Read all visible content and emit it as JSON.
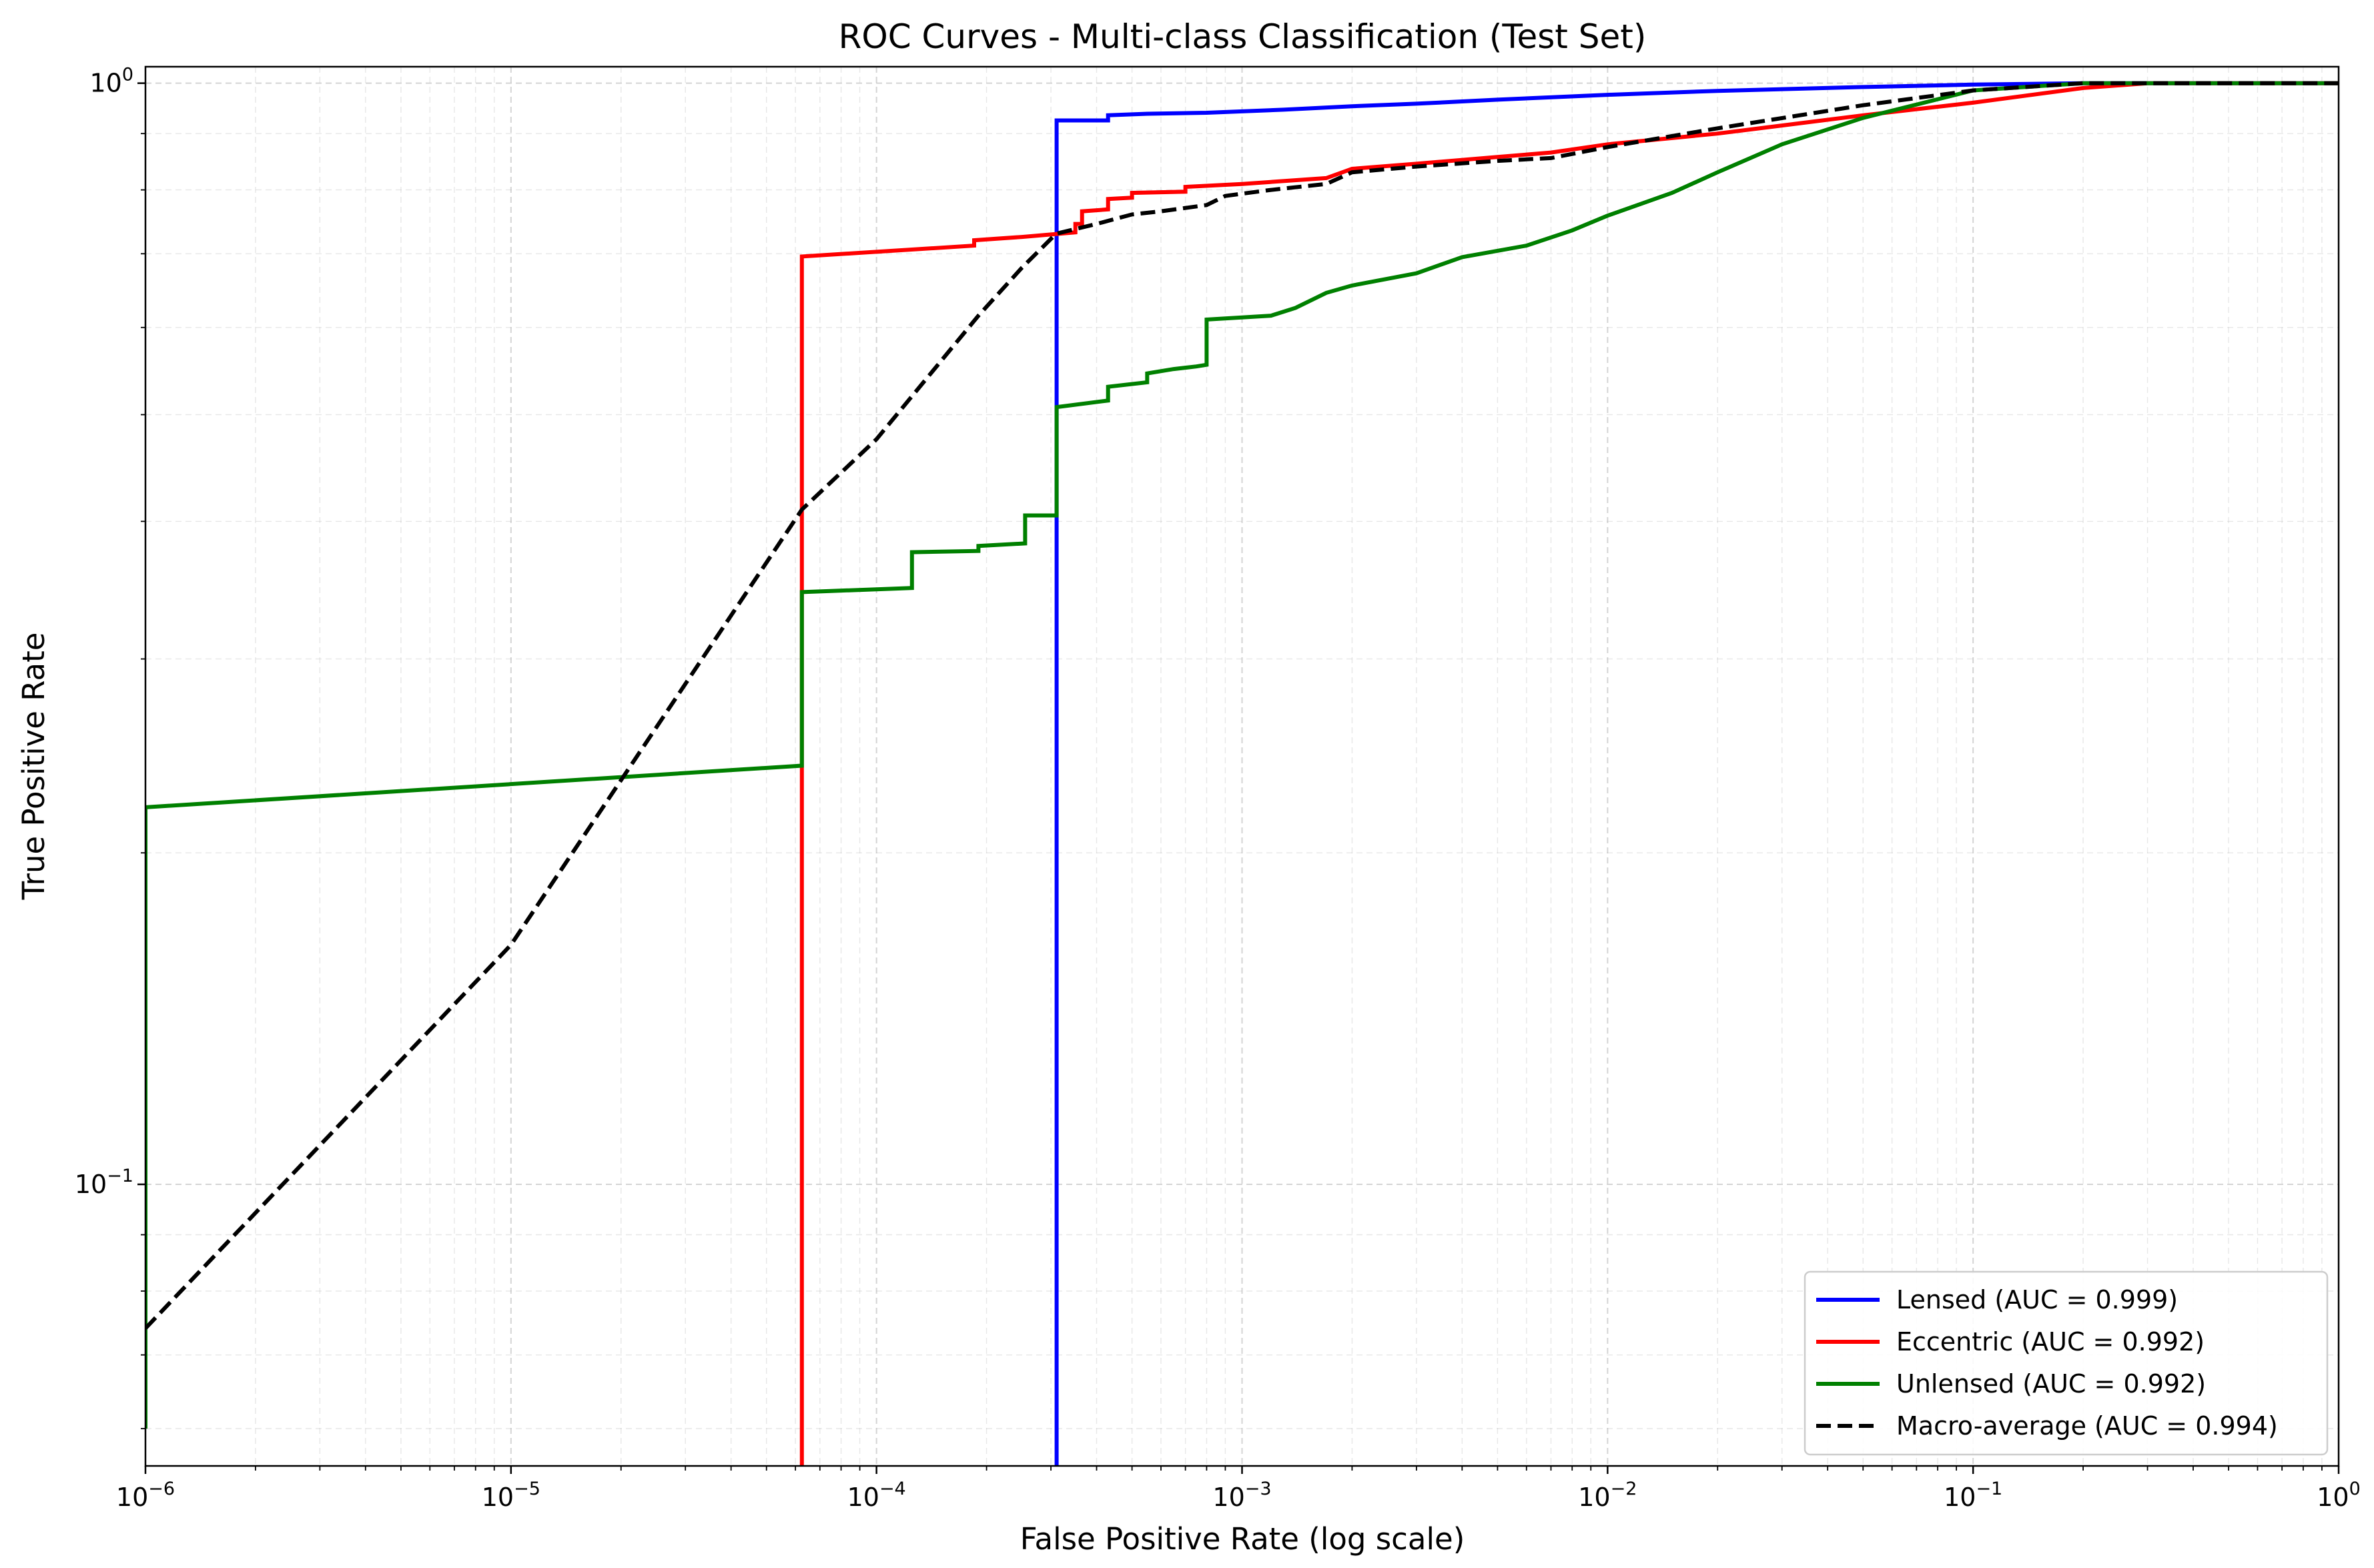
{
  "chart_data": {
    "type": "line",
    "title": "ROC Curves - Multi-class Classification (Test Set)",
    "xlabel": "False Positive Rate (log scale)",
    "ylabel": "True Positive Rate",
    "xscale": "log",
    "yscale": "log",
    "xlim": [
      1e-06,
      1
    ],
    "ylim": [
      0.0555,
      1.035
    ],
    "grid": true,
    "legend_position": "bottom-right",
    "x_tick_labels": [
      {
        "value": 1e-06,
        "base": "10",
        "exp": "−6"
      },
      {
        "value": 1e-05,
        "base": "10",
        "exp": "−5"
      },
      {
        "value": 0.0001,
        "base": "10",
        "exp": "−4"
      },
      {
        "value": 0.001,
        "base": "10",
        "exp": "−3"
      },
      {
        "value": 0.01,
        "base": "10",
        "exp": "−2"
      },
      {
        "value": 0.1,
        "base": "10",
        "exp": "−1"
      },
      {
        "value": 1,
        "base": "10",
        "exp": "0"
      }
    ],
    "y_tick_labels": [
      {
        "value": 0.1,
        "base": "10",
        "exp": "−1"
      },
      {
        "value": 1,
        "base": "10",
        "exp": "0"
      }
    ],
    "series": [
      {
        "name": "Lensed (AUC = 0.999)",
        "color": "#0000ff",
        "dash": "solid",
        "points": [
          [
            0.000311,
            0.05
          ],
          [
            0.000311,
            0.925
          ],
          [
            0.00043,
            0.925
          ],
          [
            0.00043,
            0.935
          ],
          [
            0.00055,
            0.938
          ],
          [
            0.0008,
            0.94
          ],
          [
            0.0013,
            0.946
          ],
          [
            0.002,
            0.953
          ],
          [
            0.003,
            0.958
          ],
          [
            0.005,
            0.966
          ],
          [
            0.01,
            0.976
          ],
          [
            0.02,
            0.984
          ],
          [
            0.05,
            0.992
          ],
          [
            0.1,
            0.997
          ],
          [
            0.2,
            1.0
          ],
          [
            1.0,
            1.0
          ]
        ]
      },
      {
        "name": "Eccentric (AUC = 0.992)",
        "color": "#ff0000",
        "dash": "solid",
        "points": [
          [
            6.25e-05,
            0.05
          ],
          [
            6.25e-05,
            0.696
          ],
          [
            0.000185,
            0.712
          ],
          [
            0.000185,
            0.72
          ],
          [
            0.00025,
            0.725
          ],
          [
            0.00035,
            0.732
          ],
          [
            0.00035,
            0.745
          ],
          [
            0.000365,
            0.745
          ],
          [
            0.000365,
            0.765
          ],
          [
            0.00043,
            0.768
          ],
          [
            0.00043,
            0.785
          ],
          [
            0.0005,
            0.787
          ],
          [
            0.0005,
            0.795
          ],
          [
            0.0007,
            0.797
          ],
          [
            0.0007,
            0.805
          ],
          [
            0.001,
            0.81
          ],
          [
            0.0017,
            0.82
          ],
          [
            0.002,
            0.836
          ],
          [
            0.003,
            0.845
          ],
          [
            0.005,
            0.857
          ],
          [
            0.007,
            0.865
          ],
          [
            0.01,
            0.88
          ],
          [
            0.02,
            0.9
          ],
          [
            0.05,
            0.935
          ],
          [
            0.1,
            0.96
          ],
          [
            0.2,
            0.99
          ],
          [
            0.3,
            1.0
          ],
          [
            1.0,
            1.0
          ]
        ]
      },
      {
        "name": "Unlensed (AUC = 0.992)",
        "color": "#008000",
        "dash": "solid",
        "points": [
          [
            1e-06,
            0.06
          ],
          [
            1e-06,
            0.22
          ],
          [
            6.25e-05,
            0.24
          ],
          [
            6.25e-05,
            0.345
          ],
          [
            0.000125,
            0.348
          ],
          [
            0.000125,
            0.375
          ],
          [
            0.00019,
            0.376
          ],
          [
            0.00019,
            0.38
          ],
          [
            0.000255,
            0.382
          ],
          [
            0.000255,
            0.405
          ],
          [
            0.000311,
            0.405
          ],
          [
            0.000311,
            0.508
          ],
          [
            0.00043,
            0.515
          ],
          [
            0.00043,
            0.53
          ],
          [
            0.00055,
            0.535
          ],
          [
            0.00055,
            0.545
          ],
          [
            0.00065,
            0.55
          ],
          [
            0.00075,
            0.553
          ],
          [
            0.0008,
            0.555
          ],
          [
            0.0008,
            0.61
          ],
          [
            0.0012,
            0.615
          ],
          [
            0.0014,
            0.625
          ],
          [
            0.0017,
            0.645
          ],
          [
            0.002,
            0.655
          ],
          [
            0.003,
            0.672
          ],
          [
            0.004,
            0.695
          ],
          [
            0.006,
            0.712
          ],
          [
            0.008,
            0.735
          ],
          [
            0.01,
            0.758
          ],
          [
            0.015,
            0.795
          ],
          [
            0.02,
            0.83
          ],
          [
            0.03,
            0.88
          ],
          [
            0.05,
            0.93
          ],
          [
            0.1,
            0.985
          ],
          [
            0.2,
            1.0
          ],
          [
            1.0,
            1.0
          ]
        ]
      },
      {
        "name": "Macro-average (AUC = 0.994)",
        "color": "#000000",
        "dash": "dashed",
        "points": [
          [
            1e-06,
            0.074
          ],
          [
            1e-05,
            0.165
          ],
          [
            6.25e-05,
            0.41
          ],
          [
            0.0001,
            0.475
          ],
          [
            0.00019,
            0.615
          ],
          [
            0.00025,
            0.68
          ],
          [
            0.00031,
            0.73
          ],
          [
            0.0004,
            0.745
          ],
          [
            0.0005,
            0.76
          ],
          [
            0.0006,
            0.765
          ],
          [
            0.0008,
            0.775
          ],
          [
            0.0009,
            0.79
          ],
          [
            0.0012,
            0.8
          ],
          [
            0.0017,
            0.81
          ],
          [
            0.002,
            0.83
          ],
          [
            0.003,
            0.84
          ],
          [
            0.005,
            0.85
          ],
          [
            0.007,
            0.855
          ],
          [
            0.01,
            0.875
          ],
          [
            0.02,
            0.91
          ],
          [
            0.05,
            0.955
          ],
          [
            0.1,
            0.985
          ],
          [
            0.2,
            1.0
          ],
          [
            1.0,
            1.0
          ]
        ]
      }
    ]
  }
}
